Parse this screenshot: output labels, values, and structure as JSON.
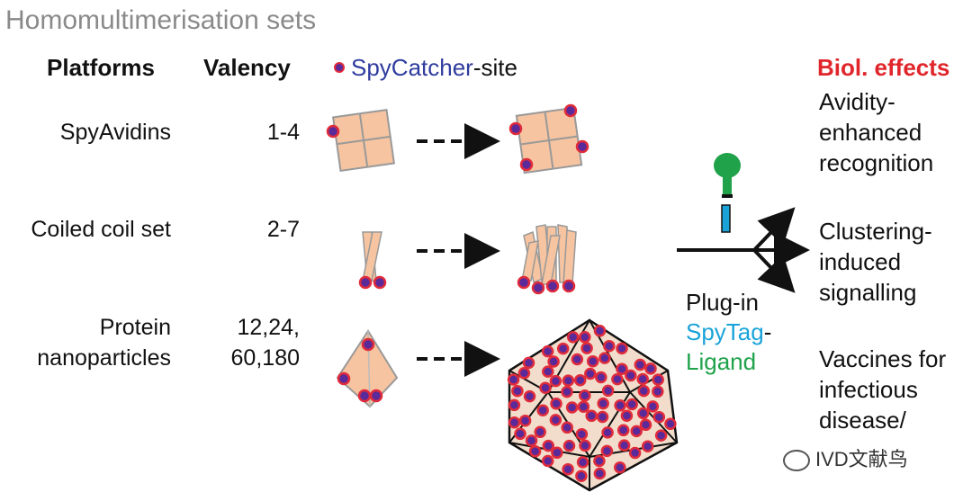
{
  "title": "Homomultimerisation sets",
  "headers": {
    "platforms": "Platforms",
    "valency": "Valency"
  },
  "legend": {
    "site_name": "SpyCatcher",
    "site_suffix": "-site"
  },
  "rows": [
    {
      "platform": "SpyAvidins",
      "valency": "1-4"
    },
    {
      "platform": "Coiled coil set",
      "valency": "2-7"
    },
    {
      "platform_line1": "Protein",
      "platform_line2": "nanoparticles",
      "valency_line1": "12,24,",
      "valency_line2": "60,180"
    }
  ],
  "plug_in": {
    "line1": "Plug-in",
    "spytag": "SpyTag",
    "dash": "-",
    "ligand": "Ligand"
  },
  "effects": {
    "heading": "Biol. effects",
    "items": [
      "Avidity-enhanced recognition",
      "Clustering-induced signalling",
      "Vaccines for infectious disease/"
    ]
  },
  "colors": {
    "site_fill": "#5a2a9a",
    "site_ring": "#e02b3a",
    "platform_fill": "#f6c4a0",
    "heading_red": "#e0262b",
    "spytag_blue": "#1aa3d9",
    "ligand_green": "#1fa24a"
  },
  "watermark": "IVD文献鸟"
}
